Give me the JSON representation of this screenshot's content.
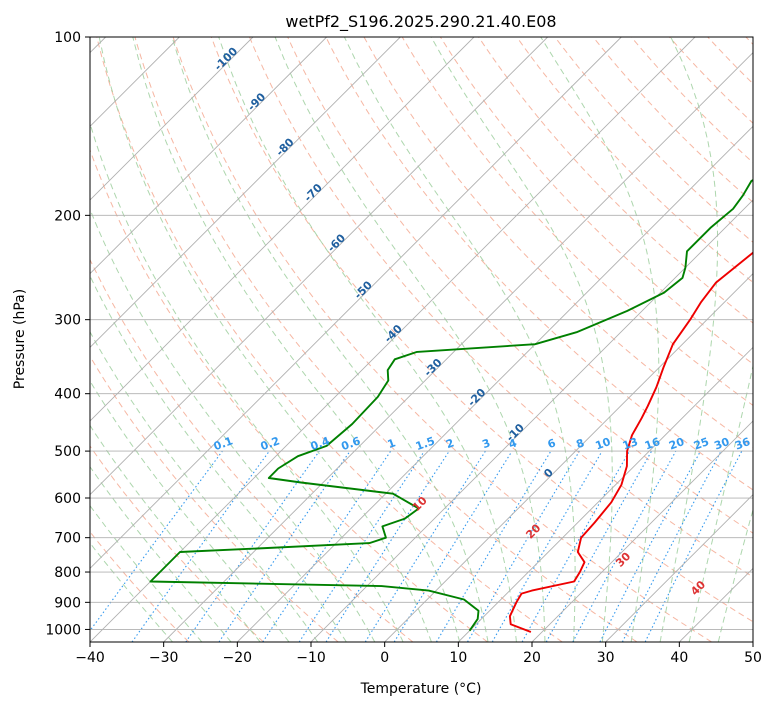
{
  "chart_data": {
    "type": "line",
    "title": "wetPf2_S196.2025.290.21.40.E08",
    "xlabel": "Temperature (°C)",
    "ylabel": "Pressure (hPa)",
    "xlim": [
      -40,
      50
    ],
    "ylim": [
      1050,
      100
    ],
    "y_scale": "log",
    "grid": true,
    "xticks": [
      "−40",
      "−30",
      "−20",
      "−10",
      "0",
      "10",
      "20",
      "30",
      "40",
      "50"
    ],
    "yticks": [
      {
        "p": 100,
        "label": "100"
      },
      {
        "p": 200,
        "label": "200"
      },
      {
        "p": 300,
        "label": "300"
      },
      {
        "p": 400,
        "label": "400"
      },
      {
        "p": 500,
        "label": "500"
      },
      {
        "p": 600,
        "label": "600"
      },
      {
        "p": 700,
        "label": "700"
      },
      {
        "p": 800,
        "label": "800"
      },
      {
        "p": 900,
        "label": "900"
      },
      {
        "p": 1000,
        "label": "1000"
      }
    ],
    "colors": {
      "temperature": "#ee0000",
      "dewpoint": "#008000",
      "isotherm_label": "#1f5f9f",
      "mixing_ratio": "#3399ee",
      "moist_adiabat_label": "#dd3333",
      "dry_adiabat": "#f4a58c",
      "moist_adiabat": "#99cc99"
    },
    "series": [
      {
        "key": "temperature",
        "points": [
          [
            18.5,
            1010
          ],
          [
            14.7,
            980
          ],
          [
            13.5,
            950
          ],
          [
            12.5,
            900
          ],
          [
            12.0,
            870
          ],
          [
            13.0,
            860
          ],
          [
            17.5,
            830
          ],
          [
            17.0,
            800
          ],
          [
            16.3,
            770
          ],
          [
            14.0,
            740
          ],
          [
            12.5,
            700
          ],
          [
            12.3,
            660
          ],
          [
            11.8,
            610
          ],
          [
            10.8,
            570
          ],
          [
            9.0,
            530
          ],
          [
            7.0,
            500
          ],
          [
            5.5,
            470
          ],
          [
            4.5,
            440
          ],
          [
            3.7,
            420
          ],
          [
            2.3,
            390
          ],
          [
            0.5,
            360
          ],
          [
            -1.3,
            330
          ],
          [
            -2.3,
            300
          ],
          [
            -3.2,
            280
          ],
          [
            -3.8,
            260
          ],
          [
            -2.8,
            230
          ],
          [
            -1.0,
            205
          ],
          [
            3.5,
            185
          ],
          [
            6.5,
            170
          ],
          [
            8.5,
            150
          ],
          [
            9.5,
            135
          ],
          [
            12.5,
            120
          ],
          [
            15.5,
            108
          ],
          [
            18.5,
            100
          ]
        ]
      },
      {
        "key": "dewpoint",
        "points": [
          [
            10.0,
            1005
          ],
          [
            9.5,
            960
          ],
          [
            8.5,
            930
          ],
          [
            5.0,
            890
          ],
          [
            -1.0,
            860
          ],
          [
            -8.0,
            845
          ],
          [
            -40.0,
            830
          ],
          [
            -40.0,
            740
          ],
          [
            -30.0,
            730
          ],
          [
            -15.5,
            715
          ],
          [
            -14.0,
            700
          ],
          [
            -16.0,
            670
          ],
          [
            -14.0,
            650
          ],
          [
            -13.5,
            625
          ],
          [
            -19.0,
            590
          ],
          [
            -33.0,
            565
          ],
          [
            -38.0,
            555
          ],
          [
            -38.0,
            535
          ],
          [
            -37.0,
            510
          ],
          [
            -34.5,
            490
          ],
          [
            -34.0,
            450
          ],
          [
            -34.2,
            405
          ],
          [
            -35.0,
            380
          ],
          [
            -36.5,
            365
          ],
          [
            -37.0,
            350
          ],
          [
            -35.0,
            340
          ],
          [
            -20.0,
            330
          ],
          [
            -16.0,
            315
          ],
          [
            -12.0,
            290
          ],
          [
            -9.5,
            270
          ],
          [
            -9.0,
            255
          ],
          [
            -10.0,
            245
          ],
          [
            -12.0,
            230
          ],
          [
            -12.0,
            210
          ],
          [
            -11.5,
            195
          ],
          [
            -12.0,
            185
          ],
          [
            -12.8,
            175
          ],
          [
            -10.5,
            160
          ],
          [
            -8.5,
            145
          ],
          [
            -7.0,
            135
          ],
          [
            -4.0,
            125
          ],
          [
            -1.5,
            115
          ],
          [
            1.0,
            105
          ],
          [
            2.5,
            100
          ]
        ]
      }
    ],
    "isotherm_labels": [
      "-100",
      "-90",
      "-80",
      "-70",
      "-60",
      "-50",
      "-40",
      "-30",
      "-20",
      "-10",
      "0"
    ],
    "mixing_ratio_labels": [
      "0.1",
      "0.2",
      "0.4",
      "0.6",
      "1",
      "1.5",
      "2",
      "3",
      "4",
      "6",
      "8",
      "10",
      "13",
      "16",
      "20",
      "25",
      "30",
      "36"
    ],
    "moist_adiabat_labels": [
      "10",
      "20",
      "30",
      "40"
    ]
  }
}
